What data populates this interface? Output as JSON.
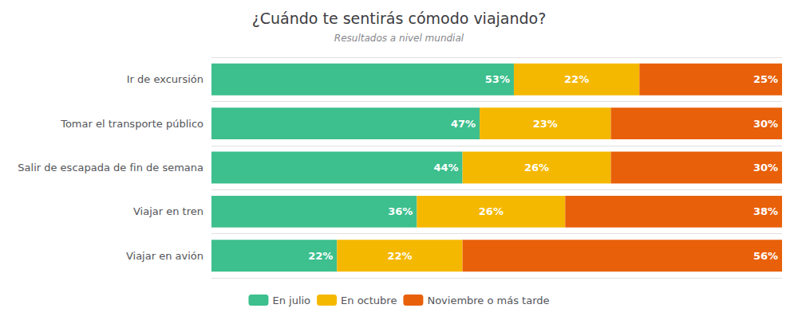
{
  "chart_data": {
    "type": "bar",
    "title": "¿Cuándo te sentirás cómodo viajando?",
    "subtitle": "Resultados a nivel mundial",
    "orientation": "horizontal",
    "stacked": true,
    "data_labels": true,
    "tick_labels": "y",
    "grid": true,
    "legend": "bottom",
    "xlim": [
      0,
      100
    ],
    "categories": [
      "Ir de excursión",
      "Tomar el transporte público",
      "Salir de escapada de fin de semana",
      "Viajar en tren",
      "Viajar en avión"
    ],
    "series": [
      {
        "name": "En julio",
        "color": "#3dbf8e",
        "values": [
          53,
          47,
          44,
          36,
          22
        ],
        "value_labels": [
          "53%",
          "47%",
          "44%",
          "36%",
          "22%"
        ]
      },
      {
        "name": "En octubre",
        "color": "#f5b800",
        "values": [
          22,
          23,
          26,
          26,
          22
        ],
        "value_labels": [
          "22%",
          "23%",
          "26%",
          "26%",
          "22%"
        ]
      },
      {
        "name": "Noviembre o más tarde",
        "color": "#e8600a",
        "values": [
          25,
          30,
          30,
          38,
          56
        ],
        "value_labels": [
          "25%",
          "30%",
          "30%",
          "38%",
          "56%"
        ]
      }
    ]
  }
}
